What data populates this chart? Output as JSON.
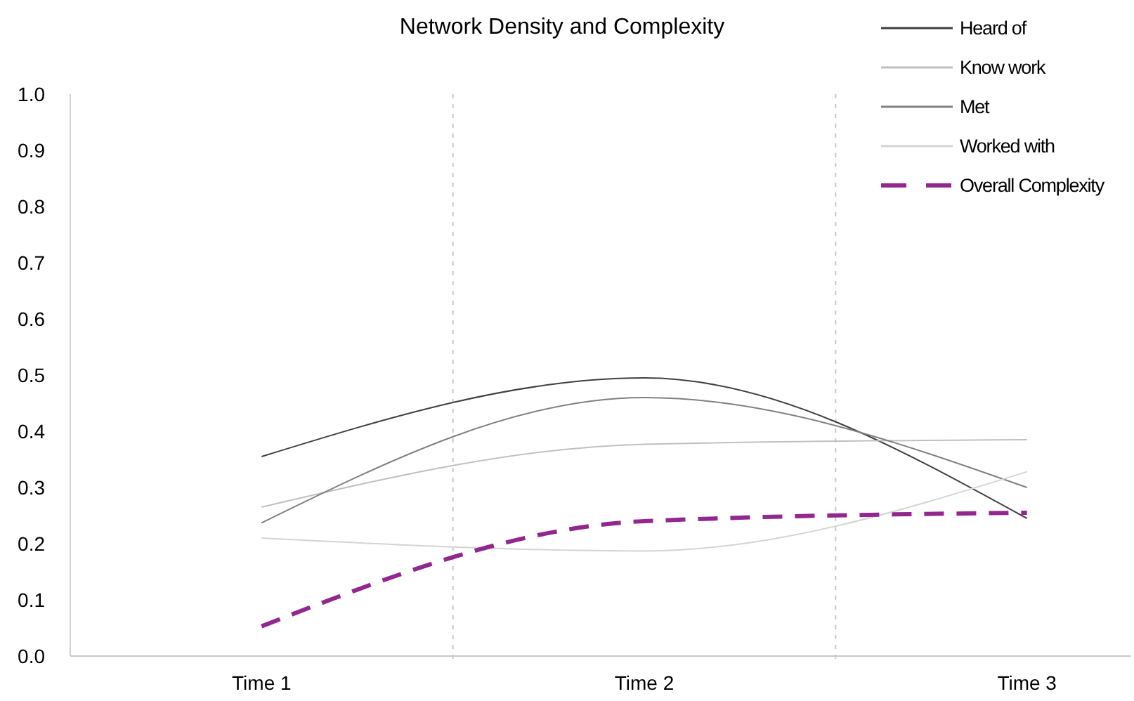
{
  "chart_data": {
    "type": "line",
    "title": "Network Density and Complexity",
    "categories": [
      "Time 1",
      "Time 2",
      "Time 3"
    ],
    "series": [
      {
        "name": "Heard of",
        "color": "#404040",
        "values": [
          0.355,
          0.495,
          0.245
        ]
      },
      {
        "name": "Know work",
        "color": "#c0c0c0",
        "values": [
          0.265,
          0.377,
          0.385
        ]
      },
      {
        "name": "Met",
        "color": "#808080",
        "values": [
          0.237,
          0.46,
          0.3
        ]
      },
      {
        "name": "Worked with",
        "color": "#d4d4d4",
        "values": [
          0.21,
          0.187,
          0.328
        ]
      },
      {
        "name": "Overall Complexity",
        "color": "#92278f",
        "values": [
          0.053,
          0.24,
          0.255
        ],
        "line_style": "dashed"
      }
    ],
    "ylim": [
      0,
      1
    ],
    "yticks": [
      {
        "value": 0,
        "label": "0.0"
      },
      {
        "value": 0.1,
        "label": "0.1"
      },
      {
        "value": 0.2,
        "label": "0.2"
      },
      {
        "value": 0.3,
        "label": "0.3"
      },
      {
        "value": 0.4,
        "label": "0.4"
      },
      {
        "value": 0.5,
        "label": "0.5"
      },
      {
        "value": 0.6,
        "label": "0.6"
      },
      {
        "value": 0.7,
        "label": "0.7"
      },
      {
        "value": 0.8,
        "label": "0.8"
      },
      {
        "value": 0.9,
        "label": "0.9"
      },
      {
        "value": 1,
        "label": "1.0"
      }
    ],
    "grid": "x",
    "legend": "top right",
    "marker": "none"
  }
}
